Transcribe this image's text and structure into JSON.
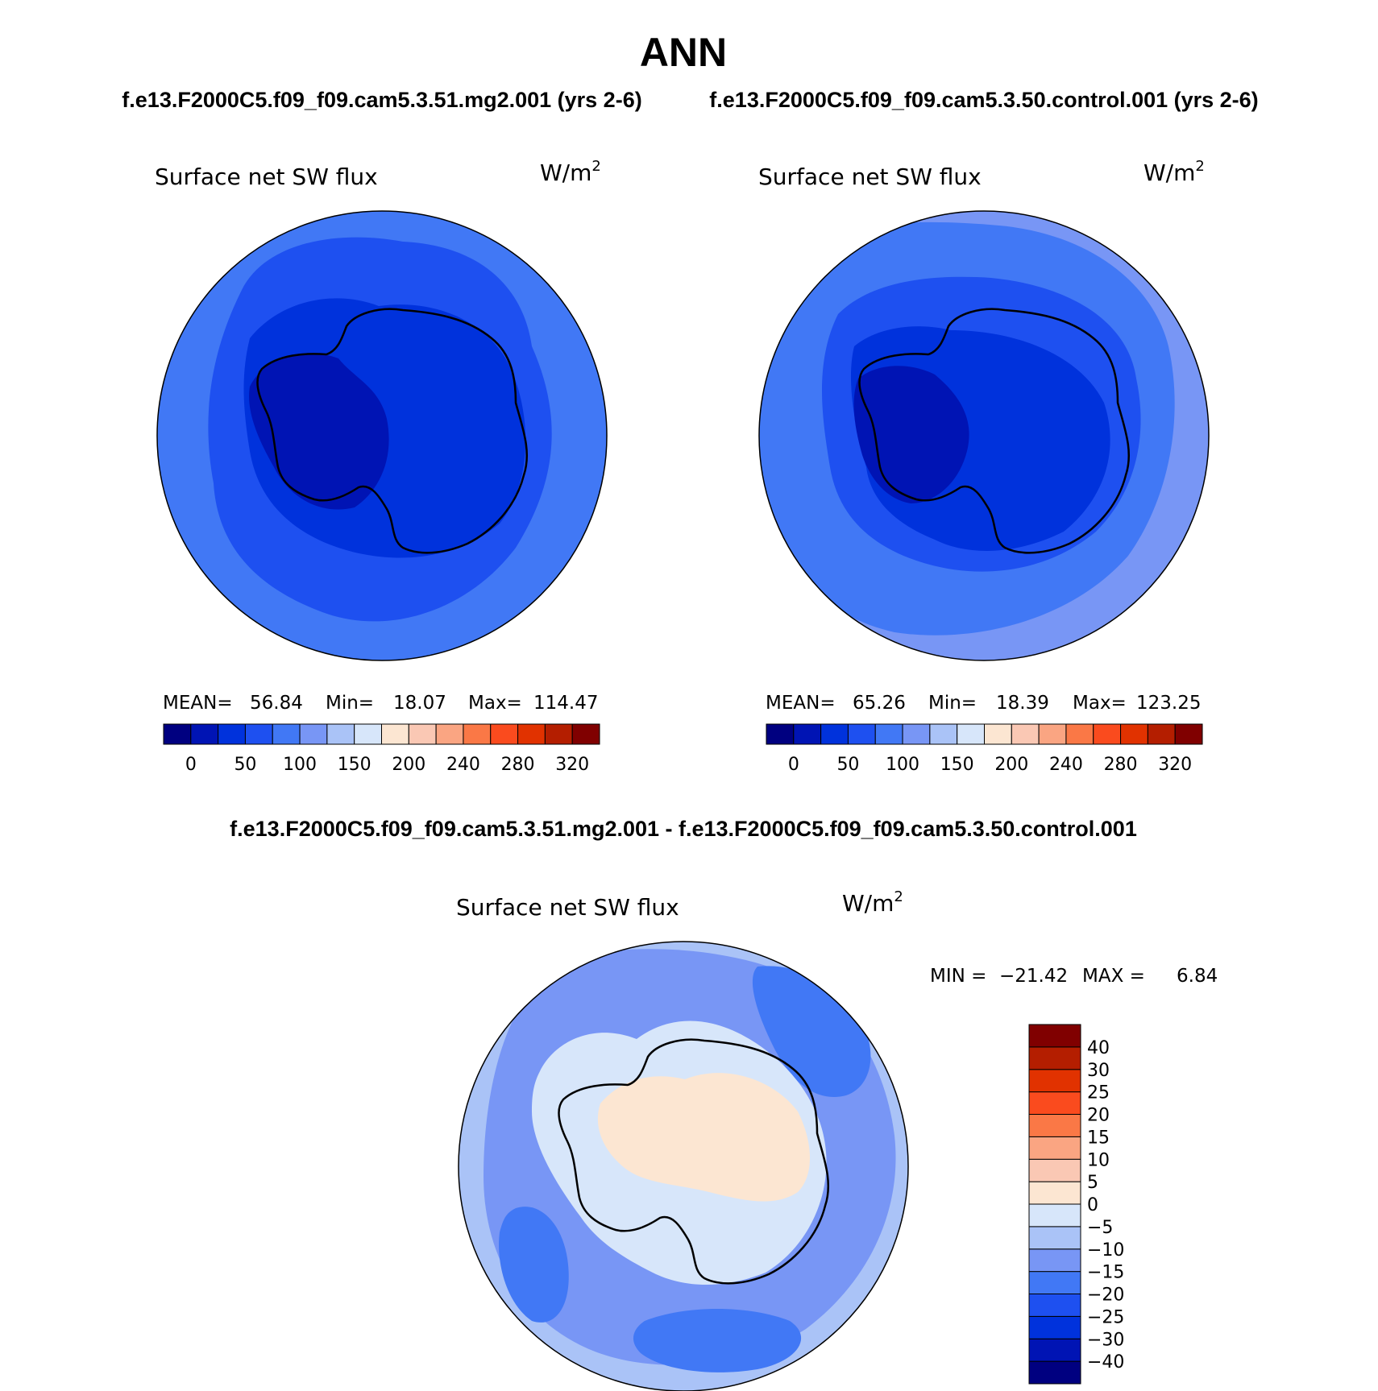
{
  "figure": {
    "season": "ANN",
    "case_label": "f.e13.F2000C5.f09_f09.cam5.3.51.mg2.001 (yrs 2-6)",
    "control_label": "f.e13.F2000C5.f09_f09.cam5.3.50.control.001 (yrs 2-6)",
    "diff_label": "f.e13.F2000C5.f09_f09.cam5.3.51.mg2.001 - f.e13.F2000C5.f09_f09.cam5.3.50.control.001"
  },
  "panels": [
    {
      "id": "case",
      "variable": "Surface net SW flux",
      "units_base": "W/m",
      "units_exp": "2",
      "mean_label": "MEAN=",
      "mean": "56.84",
      "min_label": "Min=",
      "min": "18.07",
      "max_label": "Max=",
      "max": "114.47"
    },
    {
      "id": "control",
      "variable": "Surface net SW flux",
      "units_base": "W/m",
      "units_exp": "2",
      "mean_label": "MEAN=",
      "mean": "65.26",
      "min_label": "Min=",
      "min": "18.39",
      "max_label": "Max=",
      "max": "123.25"
    },
    {
      "id": "difference",
      "variable": "Surface net SW flux",
      "units_base": "W/m",
      "units_exp": "2",
      "min_label": "MIN =",
      "min": "−21.42",
      "max_label": "MAX =",
      "max": "6.84"
    }
  ],
  "colorbar_abs": {
    "colors": [
      "#000080",
      "#0014b4",
      "#0032dc",
      "#1e50f0",
      "#4178f5",
      "#7896f5",
      "#aac3f7",
      "#d7e6fa",
      "#fce6d2",
      "#fac8b4",
      "#faa582",
      "#fa7846",
      "#fa4b1e",
      "#e13200",
      "#b41e00",
      "#800000"
    ],
    "tick_labels": [
      "0",
      "50",
      "100",
      "150",
      "200",
      "240",
      "280",
      "320"
    ]
  },
  "colorbar_diff": {
    "colors_bottom_to_top": [
      "#000080",
      "#0014b4",
      "#0032dc",
      "#1e50f0",
      "#4178f5",
      "#7896f5",
      "#aac3f7",
      "#d7e6fa",
      "#fce6d2",
      "#fac8b4",
      "#faa582",
      "#fa7846",
      "#fa4b1e",
      "#e13200",
      "#b41e00",
      "#800000"
    ],
    "tick_labels_top_to_bottom": [
      "40",
      "30",
      "25",
      "20",
      "15",
      "10",
      "5",
      "0",
      "−5",
      "−10",
      "−15",
      "−20",
      "−25",
      "−30",
      "−40"
    ]
  },
  "map_fill_colors": {
    "case": [
      "#4178f5",
      "#1e50f0",
      "#0032dc",
      "#0014b4"
    ],
    "control": [
      "#7896f5",
      "#4178f5",
      "#1e50f0",
      "#0032dc",
      "#0014b4"
    ],
    "difference": [
      "#aac3f7",
      "#7896f5",
      "#4178f5",
      "#d7e6fa",
      "#fce6d2"
    ]
  }
}
